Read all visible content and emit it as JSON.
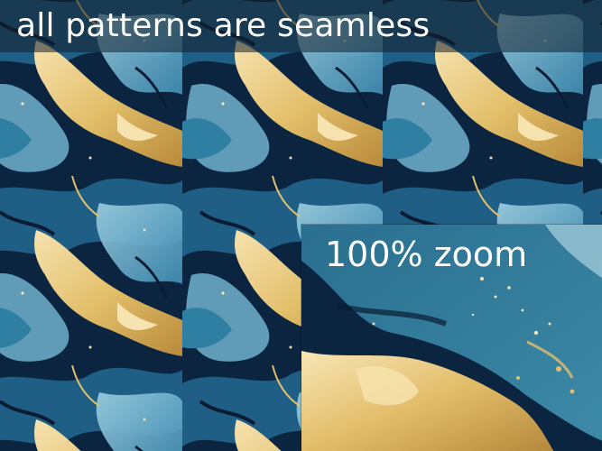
{
  "header": {
    "title": "all patterns are seamless"
  },
  "zoom_panel": {
    "label": "100% zoom"
  },
  "colors": {
    "navy": "#0b2440",
    "teal": "#2f7fa3",
    "light_blue": "#8fc3d8",
    "gold": "#e3bf6a",
    "cream": "#f6e3b0"
  }
}
